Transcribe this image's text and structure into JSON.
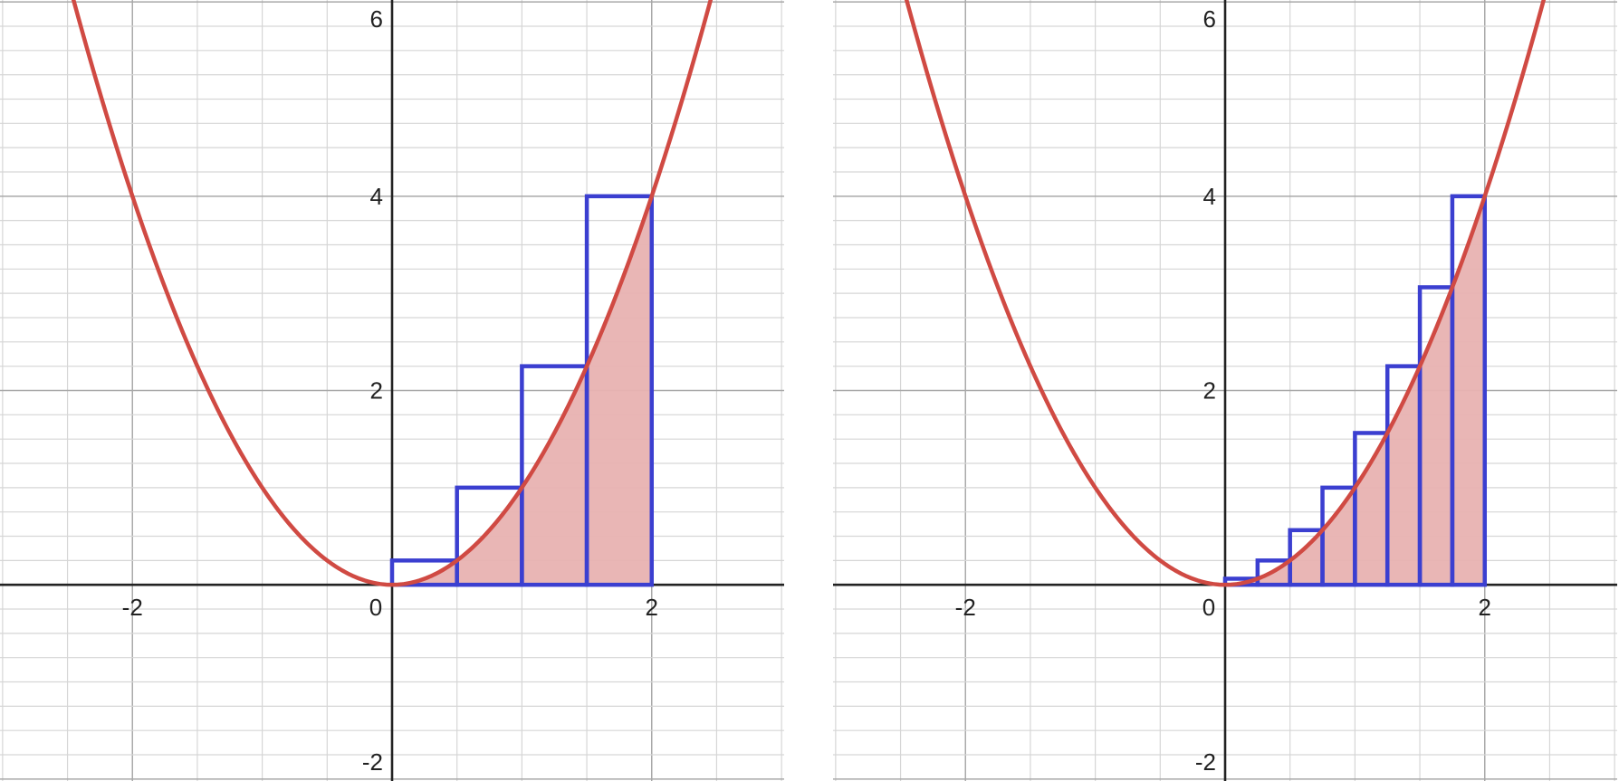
{
  "chart_data": [
    {
      "type": "area",
      "function": "y = x^2",
      "xlim": [
        -3.02,
        3.02
      ],
      "ylim": [
        -2.02,
        6.02
      ],
      "xticks": [
        -2,
        0,
        2
      ],
      "yticks": [
        -2,
        2,
        4,
        6
      ],
      "xtick_labels": [
        "-2",
        "0",
        "2"
      ],
      "ytick_labels": [
        "-2",
        "2",
        "4",
        "6"
      ],
      "grid": true,
      "shaded_region": {
        "from": 0,
        "to": 2
      },
      "rectangles": {
        "method": "right-endpoint",
        "n": 4,
        "x_left": [
          0,
          0.5,
          1,
          1.5
        ],
        "width": 0.5,
        "heights": [
          0.25,
          1,
          2.25,
          4
        ]
      },
      "colors": {
        "curve": "#d04a43",
        "fill": "#e8b2b1",
        "rectangles": "#3b3fd0",
        "axis": "#222222",
        "grid_major": "#a9a9a9",
        "grid_minor": "#d6d6d6"
      }
    },
    {
      "type": "area",
      "function": "y = x^2",
      "xlim": [
        -3.02,
        3.02
      ],
      "ylim": [
        -2.02,
        6.02
      ],
      "xticks": [
        -2,
        0,
        2
      ],
      "yticks": [
        -2,
        2,
        4,
        6
      ],
      "xtick_labels": [
        "-2",
        "0",
        "2"
      ],
      "ytick_labels": [
        "-2",
        "2",
        "4",
        "6"
      ],
      "grid": true,
      "shaded_region": {
        "from": 0,
        "to": 2
      },
      "rectangles": {
        "method": "right-endpoint",
        "n": 8,
        "x_left": [
          0,
          0.25,
          0.5,
          0.75,
          1,
          1.25,
          1.5,
          1.75
        ],
        "width": 0.25,
        "heights": [
          0.0625,
          0.25,
          0.5625,
          1,
          1.5625,
          2.25,
          3.0625,
          4
        ]
      },
      "colors": {
        "curve": "#d04a43",
        "fill": "#e8b2b1",
        "rectangles": "#3b3fd0",
        "axis": "#222222",
        "grid_major": "#a9a9a9",
        "grid_minor": "#d6d6d6"
      }
    }
  ]
}
